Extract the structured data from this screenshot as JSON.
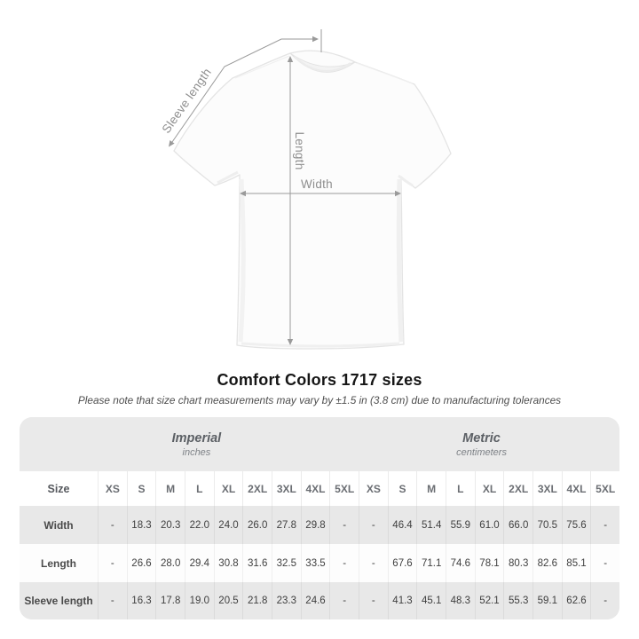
{
  "title": "Comfort Colors 1717 sizes",
  "note": "Please note that size chart measurements may vary by ±1.5 in (3.8 cm) due to manufacturing tolerances",
  "diagram": {
    "labels": {
      "sleeve": "Sleeve length",
      "length": "Length",
      "width": "Width"
    }
  },
  "chart_data": {
    "type": "table",
    "title": "Comfort Colors 1717 sizes",
    "size_header": "Size",
    "sizes": [
      "XS",
      "S",
      "M",
      "L",
      "XL",
      "2XL",
      "3XL",
      "4XL",
      "5XL"
    ],
    "unit_groups": [
      {
        "label": "Imperial",
        "sublabel": "inches"
      },
      {
        "label": "Metric",
        "sublabel": "centimeters"
      }
    ],
    "rows": [
      {
        "label": "Width",
        "imperial": [
          "-",
          "18.3",
          "20.3",
          "22.0",
          "24.0",
          "26.0",
          "27.8",
          "29.8",
          "-"
        ],
        "metric": [
          "-",
          "46.4",
          "51.4",
          "55.9",
          "61.0",
          "66.0",
          "70.5",
          "75.6",
          "-"
        ]
      },
      {
        "label": "Length",
        "imperial": [
          "-",
          "26.6",
          "28.0",
          "29.4",
          "30.8",
          "31.6",
          "32.5",
          "33.5",
          "-"
        ],
        "metric": [
          "-",
          "67.6",
          "71.1",
          "74.6",
          "78.1",
          "80.3",
          "82.6",
          "85.1",
          "-"
        ]
      },
      {
        "label": "Sleeve length",
        "imperial": [
          "-",
          "16.3",
          "17.8",
          "19.0",
          "20.5",
          "21.8",
          "23.3",
          "24.6",
          "-"
        ],
        "metric": [
          "-",
          "41.3",
          "45.1",
          "48.3",
          "52.1",
          "55.3",
          "59.1",
          "62.6",
          "-"
        ]
      }
    ]
  },
  "colors": {
    "annotation_gray": "#9a9a9a",
    "label_gray": "#8e8e8e",
    "table_bg": "#eaeaea",
    "stripe_gray": "#e8e8e8",
    "row_white": "#fdfdfd",
    "text_dark": "#3f3f3f"
  }
}
